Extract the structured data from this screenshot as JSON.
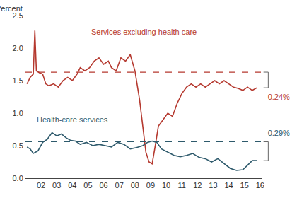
{
  "chart_data": {
    "type": "line",
    "y_label": "Percent",
    "xlim": [
      2001.5,
      2016.6
    ],
    "xticks": [
      {
        "value": 2002.5,
        "label": "02"
      },
      {
        "value": 2003.5,
        "label": "03"
      },
      {
        "value": 2004.5,
        "label": "04"
      },
      {
        "value": 2005.5,
        "label": "05"
      },
      {
        "value": 2006.5,
        "label": "06"
      },
      {
        "value": 2007.5,
        "label": "07"
      },
      {
        "value": 2008.5,
        "label": "08"
      },
      {
        "value": 2009.5,
        "label": "09"
      },
      {
        "value": 2010.5,
        "label": "10"
      },
      {
        "value": 2011.5,
        "label": "11"
      },
      {
        "value": 2012.5,
        "label": "12"
      },
      {
        "value": 2013.5,
        "label": "13"
      },
      {
        "value": 2014.5,
        "label": "14"
      },
      {
        "value": 2015.5,
        "label": "15"
      },
      {
        "value": 2016.5,
        "label": "16"
      }
    ],
    "ylim": [
      0,
      2.5
    ],
    "yticks": [
      {
        "value": 0,
        "label": "0.0"
      },
      0.5,
      {
        "value": 1,
        "label": "1.0"
      },
      1.5,
      {
        "value": 2,
        "label": "2.0"
      },
      2.5
    ],
    "grid": false,
    "series": [
      {
        "name": "Services excluding health care",
        "color": "#b5392f",
        "line_style": "solid",
        "x": [
          2001.6,
          2001.8,
          2002.0,
          2002.1,
          2002.2,
          2002.4,
          2002.6,
          2002.8,
          2003.0,
          2003.3,
          2003.6,
          2003.9,
          2004.2,
          2004.5,
          2004.8,
          2005.0,
          2005.3,
          2005.6,
          2005.9,
          2006.2,
          2006.5,
          2006.8,
          2007.0,
          2007.3,
          2007.6,
          2007.9,
          2008.2,
          2008.5,
          2008.8,
          2009.0,
          2009.2,
          2009.4,
          2009.6,
          2009.8,
          2010.0,
          2010.3,
          2010.6,
          2010.9,
          2011.2,
          2011.5,
          2011.8,
          2012.1,
          2012.4,
          2012.7,
          2013.0,
          2013.3,
          2013.6,
          2013.9,
          2014.2,
          2014.5,
          2014.8,
          2015.1,
          2015.4,
          2015.7,
          2016.0,
          2016.3
        ],
        "values": [
          1.45,
          1.55,
          1.6,
          2.27,
          1.65,
          1.62,
          1.6,
          1.45,
          1.42,
          1.45,
          1.4,
          1.5,
          1.55,
          1.5,
          1.6,
          1.7,
          1.65,
          1.7,
          1.8,
          1.85,
          1.75,
          1.8,
          1.7,
          1.65,
          1.85,
          1.8,
          1.9,
          1.65,
          1.2,
          0.8,
          0.4,
          0.25,
          0.22,
          0.5,
          0.8,
          0.9,
          1.0,
          0.95,
          1.15,
          1.3,
          1.4,
          1.45,
          1.4,
          1.45,
          1.4,
          1.45,
          1.5,
          1.45,
          1.5,
          1.45,
          1.4,
          1.38,
          1.35,
          1.4,
          1.35,
          1.39
        ],
        "average": 1.63,
        "annotation": "-0.24%"
      },
      {
        "name": "Health-care services",
        "color": "#2e5a6c",
        "line_style": "solid",
        "x": [
          2001.6,
          2001.8,
          2002.0,
          2002.3,
          2002.6,
          2002.9,
          2003.2,
          2003.5,
          2003.8,
          2004.1,
          2004.4,
          2004.7,
          2005.0,
          2005.4,
          2005.8,
          2006.2,
          2006.6,
          2007.0,
          2007.4,
          2007.8,
          2008.2,
          2008.6,
          2009.0,
          2009.3,
          2009.6,
          2009.9,
          2010.2,
          2010.6,
          2011.0,
          2011.4,
          2011.8,
          2012.2,
          2012.6,
          2013.0,
          2013.4,
          2013.8,
          2014.2,
          2014.6,
          2015.0,
          2015.4,
          2015.7,
          2016.0,
          2016.3
        ],
        "values": [
          0.48,
          0.45,
          0.38,
          0.42,
          0.55,
          0.6,
          0.7,
          0.65,
          0.68,
          0.62,
          0.58,
          0.57,
          0.52,
          0.55,
          0.5,
          0.52,
          0.5,
          0.48,
          0.55,
          0.52,
          0.45,
          0.47,
          0.5,
          0.55,
          0.57,
          0.55,
          0.45,
          0.4,
          0.35,
          0.33,
          0.35,
          0.38,
          0.32,
          0.3,
          0.25,
          0.3,
          0.22,
          0.15,
          0.12,
          0.13,
          0.2,
          0.27,
          0.27
        ],
        "average": 0.56,
        "annotation": "-0.29%"
      }
    ]
  }
}
